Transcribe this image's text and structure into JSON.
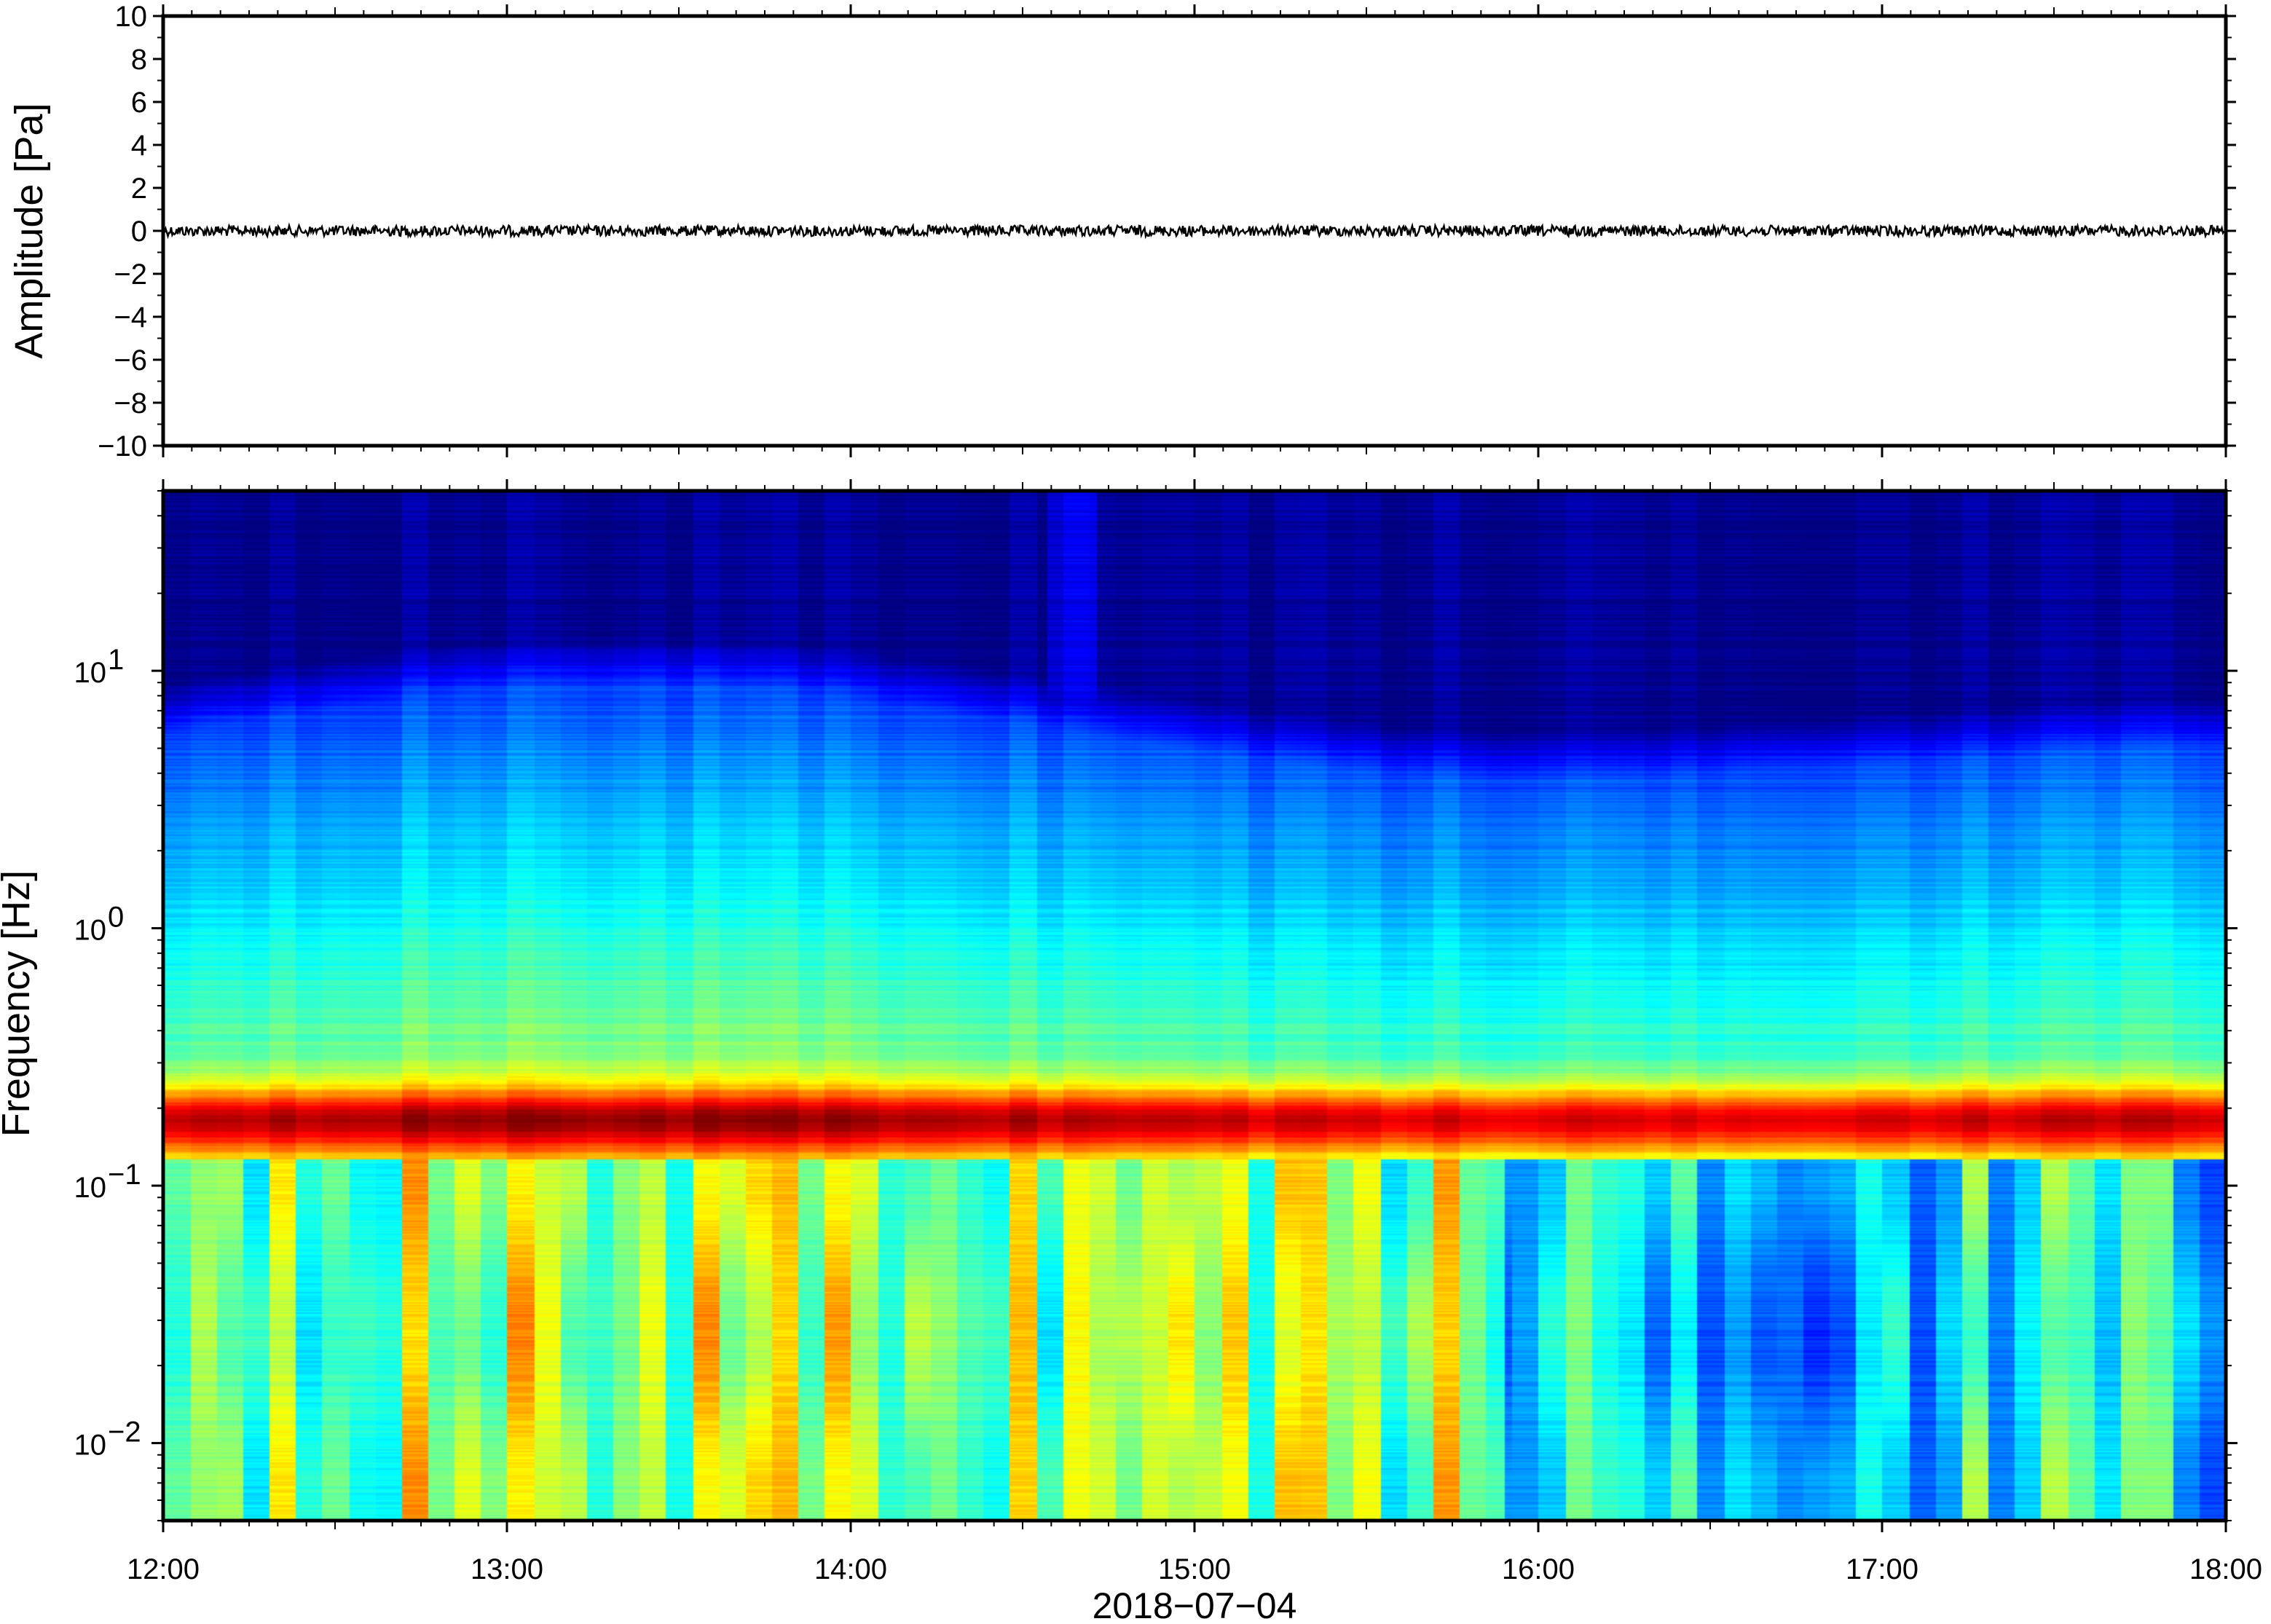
{
  "chart_data": [
    {
      "type": "line",
      "panel": "waveform",
      "ylabel": "Amplitude [Pa]",
      "ylim": [
        -10,
        10
      ],
      "yticks": [
        "10",
        "8",
        "6",
        "4",
        "2",
        "0",
        "−2",
        "−4",
        "−6",
        "−8",
        "−10"
      ],
      "xlim": [
        "12:00",
        "18:00"
      ],
      "trace_amplitude_approx": 0.25,
      "trace_mean": 0,
      "line_color": "#000000"
    },
    {
      "type": "heatmap",
      "panel": "spectrogram",
      "ylabel": "Frequency [Hz]",
      "yscale": "log",
      "ylim": [
        0.005,
        50
      ],
      "ytick_values": [
        10,
        1,
        0.1,
        0.01
      ],
      "ytick_labels": [
        {
          "base": "10",
          "exp": "1"
        },
        {
          "base": "10",
          "exp": "0"
        },
        {
          "base": "10",
          "exp": "−1"
        },
        {
          "base": "10",
          "exp": "−2"
        }
      ],
      "xticks": [
        "12:00",
        "13:00",
        "14:00",
        "15:00",
        "16:00",
        "17:00",
        "18:00"
      ],
      "xlabel": "2018−07−04",
      "colormap": "jet",
      "features": {
        "microseism_peak_hz": 0.18,
        "microseism_band_hz": [
          0.13,
          0.25
        ],
        "transient_at": "14:40",
        "low_freq_energy_higher_before": "16:00"
      }
    }
  ]
}
